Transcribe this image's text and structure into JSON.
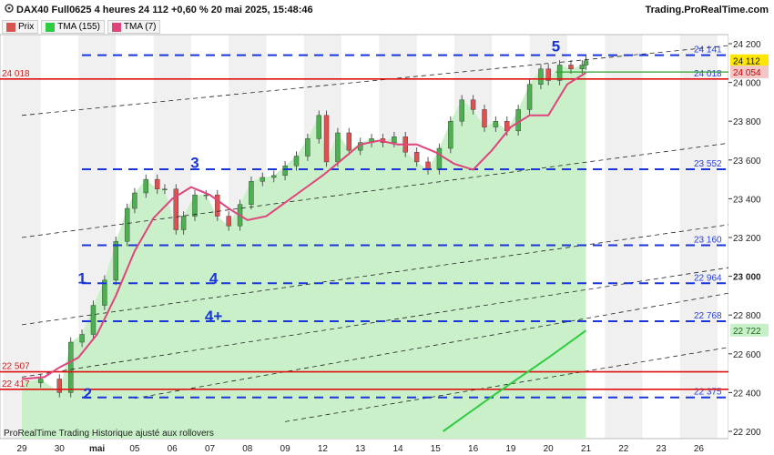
{
  "header": {
    "title": "DAX40 Full0625 4 heures 24 112 +0,60 % 20 mai 2025, 15:48:46",
    "brand": "Trading.ProRealTime.com"
  },
  "legend": [
    {
      "label": "Prix",
      "color": "#d9534f"
    },
    {
      "label": "TMA (155)",
      "color": "#2ecc40"
    },
    {
      "label": "TMA (7)",
      "color": "#e0447c"
    }
  ],
  "footer": "ProRealTime Trading  Historique ajusté aux rollovers",
  "chart_data": {
    "type": "line",
    "ylim": [
      22200,
      24200
    ],
    "yticks": [
      "24 200",
      "24 000",
      "23 800",
      "23 600",
      "23 400",
      "23 200",
      "23 000",
      "22 800",
      "22 600",
      "22 400",
      "22 200"
    ],
    "yticks_values": [
      24200,
      24000,
      23800,
      23600,
      23400,
      23200,
      23000,
      22800,
      22600,
      22400,
      22200
    ],
    "xticks": [
      "29",
      "30",
      "mai",
      "05",
      "06",
      "07",
      "08",
      "09",
      "12",
      "13",
      "14",
      "15",
      "16",
      "19",
      "20",
      "21",
      "22",
      "23",
      "26"
    ],
    "xticks_bold": [
      "mai"
    ],
    "price_area_color": "#c9f0c9",
    "series": [
      {
        "name": "TMA (7)",
        "color": "#e0447c",
        "values": [
          [
            0,
            22470
          ],
          [
            0.6,
            22480
          ],
          [
            1,
            22530
          ],
          [
            1.5,
            22580
          ],
          [
            2,
            22700
          ],
          [
            2.5,
            22900
          ],
          [
            3,
            23130
          ],
          [
            3.5,
            23300
          ],
          [
            4,
            23400
          ],
          [
            4.5,
            23460
          ],
          [
            5,
            23420
          ],
          [
            5.5,
            23350
          ],
          [
            6,
            23290
          ],
          [
            6.5,
            23310
          ],
          [
            7,
            23380
          ],
          [
            7.5,
            23450
          ],
          [
            8,
            23520
          ],
          [
            8.5,
            23600
          ],
          [
            9,
            23680
          ],
          [
            9.5,
            23700
          ],
          [
            10,
            23680
          ],
          [
            10.5,
            23680
          ],
          [
            11,
            23640
          ],
          [
            11.5,
            23580
          ],
          [
            12,
            23550
          ],
          [
            12.5,
            23650
          ],
          [
            13,
            23770
          ],
          [
            13.5,
            23830
          ],
          [
            14,
            23830
          ],
          [
            14.5,
            23990
          ],
          [
            15,
            24050
          ]
        ]
      },
      {
        "name": "TMA (155)",
        "color": "#2ecc40",
        "values": [
          [
            11.2,
            22200
          ],
          [
            12.5,
            22380
          ],
          [
            14,
            22580
          ],
          [
            15,
            22720
          ]
        ]
      }
    ],
    "price_close": [
      [
        0,
        22450
      ],
      [
        0.5,
        22470
      ],
      [
        1,
        22400
      ],
      [
        1.3,
        22660
      ],
      [
        1.6,
        22700
      ],
      [
        1.9,
        22850
      ],
      [
        2.2,
        22980
      ],
      [
        2.5,
        23180
      ],
      [
        2.8,
        23350
      ],
      [
        3,
        23430
      ],
      [
        3.3,
        23500
      ],
      [
        3.6,
        23450
      ],
      [
        3.8,
        23450
      ],
      [
        4.1,
        23240
      ],
      [
        4.3,
        23310
      ],
      [
        4.6,
        23420
      ],
      [
        4.9,
        23420
      ],
      [
        5.2,
        23310
      ],
      [
        5.5,
        23260
      ],
      [
        5.8,
        23370
      ],
      [
        6.1,
        23490
      ],
      [
        6.4,
        23510
      ],
      [
        6.7,
        23520
      ],
      [
        7,
        23570
      ],
      [
        7.3,
        23620
      ],
      [
        7.6,
        23710
      ],
      [
        7.9,
        23830
      ],
      [
        8.1,
        23590
      ],
      [
        8.4,
        23740
      ],
      [
        8.7,
        23650
      ],
      [
        9,
        23690
      ],
      [
        9.3,
        23710
      ],
      [
        9.6,
        23690
      ],
      [
        9.9,
        23720
      ],
      [
        10.2,
        23640
      ],
      [
        10.5,
        23590
      ],
      [
        10.8,
        23550
      ],
      [
        11.1,
        23660
      ],
      [
        11.4,
        23800
      ],
      [
        11.7,
        23910
      ],
      [
        12,
        23860
      ],
      [
        12.3,
        23770
      ],
      [
        12.6,
        23800
      ],
      [
        12.9,
        23750
      ],
      [
        13.2,
        23860
      ],
      [
        13.5,
        23990
      ],
      [
        13.8,
        24070
      ],
      [
        14,
        24010
      ],
      [
        14.3,
        24090
      ],
      [
        14.6,
        24070
      ],
      [
        14.9,
        24090
      ],
      [
        15,
        24112
      ]
    ],
    "levels": [
      {
        "value": 24141,
        "label": "24 141",
        "style": "dashed-blue"
      },
      {
        "value": 24018,
        "label": "24 018",
        "style": "solid-red",
        "left_label": "24 018"
      },
      {
        "value": 23552,
        "label": "23 552",
        "style": "dashed-blue"
      },
      {
        "value": 23160,
        "label": "23 160",
        "style": "dashed-blue"
      },
      {
        "value": 22964,
        "label": "22 964",
        "style": "dashed-blue"
      },
      {
        "value": 22768,
        "label": "22 768",
        "style": "dashed-blue"
      },
      {
        "value": 22375,
        "label": "22 375",
        "style": "dashed-blue"
      },
      {
        "value": 22507,
        "label": "",
        "style": "solid-red",
        "left_label": "22 507"
      },
      {
        "value": 22417,
        "label": "",
        "style": "solid-red",
        "left_label": "22 417"
      }
    ],
    "tags": [
      {
        "label": "24 112",
        "value": 24112,
        "bg": "#ffe600",
        "fg": "#111"
      },
      {
        "label": "24 054",
        "value": 24054,
        "bg": "#f4c6c6",
        "fg": "#c00"
      },
      {
        "label": "22 722",
        "value": 22722,
        "bg": "#c8f0c8",
        "fg": "#226622"
      }
    ],
    "wave_labels": [
      {
        "text": "1",
        "x": 1.6,
        "y": 22964
      },
      {
        "text": "2",
        "x": 1.75,
        "y": 22370
      },
      {
        "text": "3",
        "x": 4.6,
        "y": 23560
      },
      {
        "text": "4",
        "x": 5.1,
        "y": 22964
      },
      {
        "text": "4+",
        "x": 5.1,
        "y": 22768
      },
      {
        "text": "5",
        "x": 14.2,
        "y": 24160
      }
    ]
  }
}
